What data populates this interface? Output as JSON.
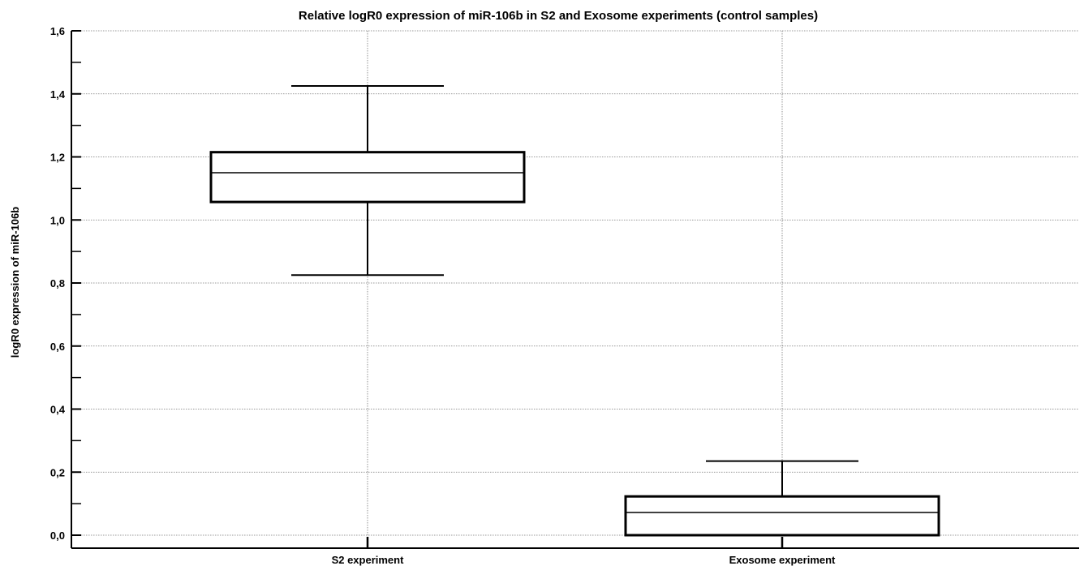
{
  "chart_data": {
    "type": "box",
    "title": "Relative logR0 expression of miR-106b in S2 and Exosome experiments (control samples)",
    "ylabel": "logR0 expression of  miR-106b",
    "xlabel": "",
    "ylim": [
      0.0,
      1.6
    ],
    "y_ticks": [
      "0,0",
      "0,2",
      "0,4",
      "0,6",
      "0,8",
      "1,0",
      "1,2",
      "1,4",
      "1,6"
    ],
    "grid": true,
    "categories": [
      "S2 experiment",
      "Exosome experiment"
    ],
    "boxes": [
      {
        "name": "S2 experiment",
        "whisker_low": 0.825,
        "q1": 1.057,
        "median": 1.15,
        "q3": 1.215,
        "whisker_high": 1.425
      },
      {
        "name": "Exosome experiment",
        "whisker_low": 0.0,
        "q1": 0.0,
        "median": 0.072,
        "q3": 0.123,
        "whisker_high": 0.235
      }
    ]
  }
}
